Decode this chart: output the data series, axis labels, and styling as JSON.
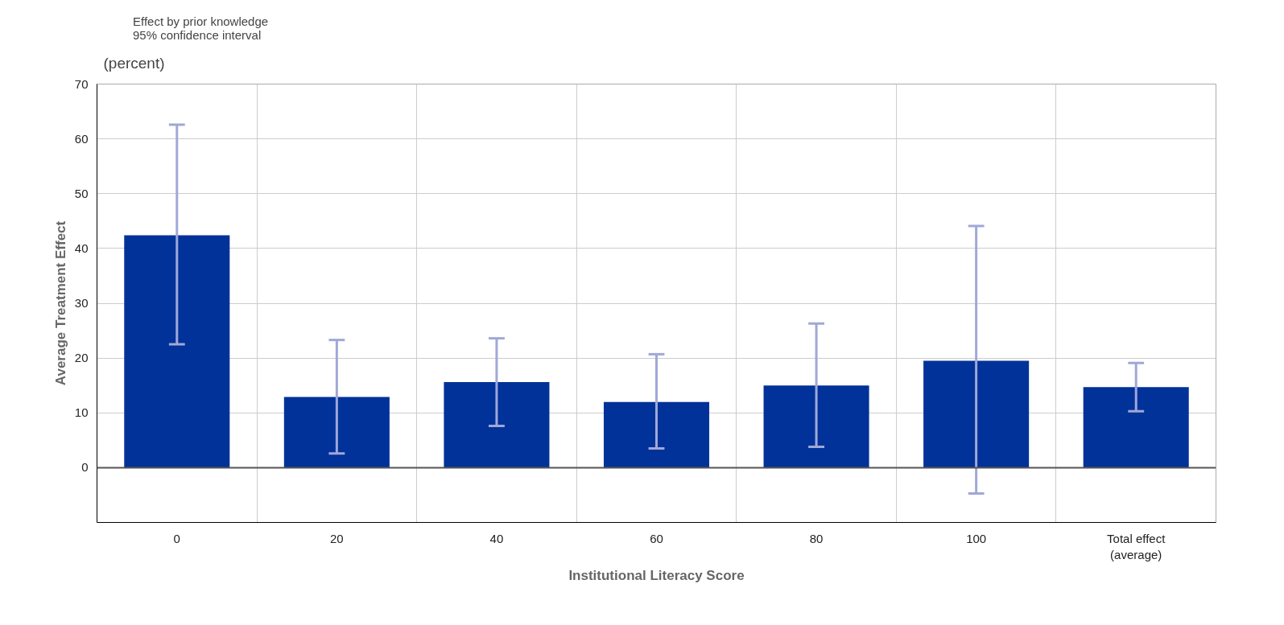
{
  "chart_data": {
    "type": "bar",
    "xlabel": "Institutional Literacy Score",
    "ylabel": "Average Treatment Effect",
    "annotations": [
      "(percent)",
      "95% confidence interval"
    ],
    "categories": [
      "0",
      "20",
      "40",
      "60",
      "80",
      "100",
      "Total effect\n(average)"
    ],
    "series": [
      {
        "name": "Effect by prior knowledge",
        "color": "#003299",
        "values": [
          42.4,
          12.9,
          15.6,
          12.0,
          15.0,
          19.5,
          14.7
        ],
        "errors": [
          [
            22.5,
            62.6
          ],
          [
            2.6,
            23.3
          ],
          [
            7.6,
            23.6
          ],
          [
            3.5,
            20.7
          ],
          [
            3.8,
            26.3
          ],
          [
            -4.7,
            44.1
          ],
          [
            10.3,
            19.1
          ]
        ]
      }
    ],
    "ylim": [
      -10,
      70
    ],
    "yticks": [
      {
        "value": -10,
        "label": null
      },
      0,
      10,
      20,
      30,
      40,
      50,
      60,
      70
    ],
    "ref_lines": [
      {
        "axis": "y",
        "value": 0,
        "color": "#555555"
      }
    ],
    "grid": true,
    "legend": "top left"
  }
}
